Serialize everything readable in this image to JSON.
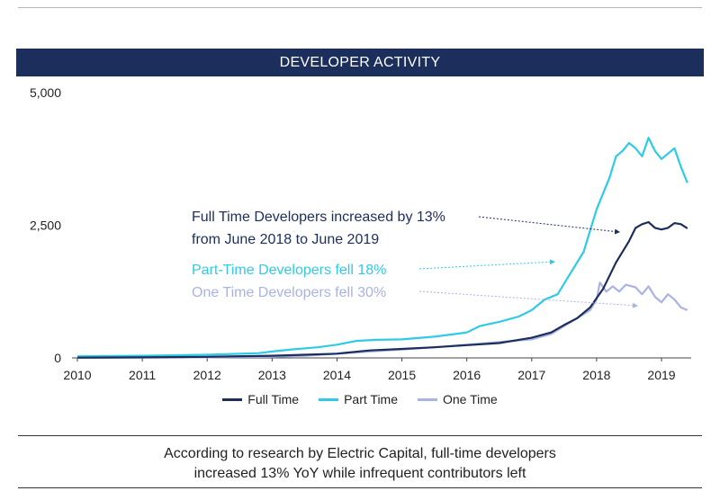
{
  "banner": {
    "title": "DEVELOPER ACTIVITY"
  },
  "colors": {
    "full_time": "#1b2e5c",
    "part_time": "#2fcbe6",
    "one_time": "#a9b3e6",
    "banner_bg": "#1b2e5c"
  },
  "chart_data": {
    "type": "line",
    "title": "DEVELOPER ACTIVITY",
    "xlim": [
      2010,
      2019.45
    ],
    "ylim": [
      0,
      5000
    ],
    "x_ticks": [
      "2010",
      "2011",
      "2012",
      "2013",
      "2014",
      "2015",
      "2016",
      "2017",
      "2018",
      "2019"
    ],
    "y_ticks": [
      "5,000",
      "2,500",
      "0"
    ],
    "y_tick_values": [
      5000,
      2500,
      0
    ],
    "grid": false,
    "legend_position": "bottom",
    "series": [
      {
        "name": "Full Time",
        "points": [
          [
            2010,
            5
          ],
          [
            2011,
            10
          ],
          [
            2012,
            20
          ],
          [
            2013,
            40
          ],
          [
            2013.5,
            60
          ],
          [
            2014,
            80
          ],
          [
            2014.5,
            140
          ],
          [
            2015,
            170
          ],
          [
            2015.5,
            200
          ],
          [
            2016,
            240
          ],
          [
            2016.5,
            280
          ],
          [
            2017,
            380
          ],
          [
            2017.3,
            480
          ],
          [
            2017.5,
            620
          ],
          [
            2017.7,
            750
          ],
          [
            2017.9,
            950
          ],
          [
            2018.1,
            1300
          ],
          [
            2018.3,
            1800
          ],
          [
            2018.5,
            2200
          ],
          [
            2018.6,
            2450
          ],
          [
            2018.7,
            2520
          ],
          [
            2018.8,
            2560
          ],
          [
            2018.9,
            2450
          ],
          [
            2019.0,
            2420
          ],
          [
            2019.1,
            2450
          ],
          [
            2019.2,
            2540
          ],
          [
            2019.3,
            2520
          ],
          [
            2019.4,
            2440
          ]
        ]
      },
      {
        "name": "Part Time",
        "points": [
          [
            2010,
            30
          ],
          [
            2011,
            40
          ],
          [
            2012,
            60
          ],
          [
            2012.8,
            90
          ],
          [
            2013,
            120
          ],
          [
            2013.3,
            160
          ],
          [
            2013.7,
            200
          ],
          [
            2014,
            250
          ],
          [
            2014.3,
            320
          ],
          [
            2014.6,
            340
          ],
          [
            2015,
            350
          ],
          [
            2015.5,
            400
          ],
          [
            2016,
            480
          ],
          [
            2016.2,
            600
          ],
          [
            2016.5,
            680
          ],
          [
            2016.8,
            780
          ],
          [
            2017,
            900
          ],
          [
            2017.2,
            1100
          ],
          [
            2017.4,
            1200
          ],
          [
            2017.6,
            1600
          ],
          [
            2017.8,
            2000
          ],
          [
            2018,
            2800
          ],
          [
            2018.1,
            3100
          ],
          [
            2018.2,
            3400
          ],
          [
            2018.3,
            3800
          ],
          [
            2018.4,
            3900
          ],
          [
            2018.5,
            4050
          ],
          [
            2018.6,
            3950
          ],
          [
            2018.7,
            3800
          ],
          [
            2018.8,
            4150
          ],
          [
            2018.9,
            3900
          ],
          [
            2019.0,
            3750
          ],
          [
            2019.1,
            3850
          ],
          [
            2019.2,
            3950
          ],
          [
            2019.3,
            3600
          ],
          [
            2019.4,
            3300
          ]
        ]
      },
      {
        "name": "One Time",
        "points": [
          [
            2010,
            0
          ],
          [
            2011,
            5
          ],
          [
            2012,
            10
          ],
          [
            2013,
            20
          ],
          [
            2013.5,
            40
          ],
          [
            2014,
            80
          ],
          [
            2014.5,
            120
          ],
          [
            2015,
            160
          ],
          [
            2015.5,
            200
          ],
          [
            2016,
            250
          ],
          [
            2016.5,
            300
          ],
          [
            2017,
            350
          ],
          [
            2017.3,
            450
          ],
          [
            2017.5,
            600
          ],
          [
            2017.7,
            750
          ],
          [
            2017.9,
            900
          ],
          [
            2018,
            1100
          ],
          [
            2018.05,
            1420
          ],
          [
            2018.15,
            1250
          ],
          [
            2018.25,
            1350
          ],
          [
            2018.35,
            1250
          ],
          [
            2018.45,
            1380
          ],
          [
            2018.6,
            1330
          ],
          [
            2018.7,
            1200
          ],
          [
            2018.8,
            1350
          ],
          [
            2018.9,
            1150
          ],
          [
            2019.0,
            1050
          ],
          [
            2019.1,
            1200
          ],
          [
            2019.2,
            1100
          ],
          [
            2019.3,
            950
          ],
          [
            2019.4,
            900
          ]
        ]
      }
    ],
    "annotations": {
      "full_line1": "Full Time Developers increased by 13%",
      "full_line2": "from June 2018 to June 2019",
      "part": "Part-Time Developers fell 18%",
      "one": "One Time Developers fell 30%"
    }
  },
  "footer": {
    "line1": "According to research by Electric Capital, full-time developers",
    "line2": "increased 13% YoY while infrequent contributors left"
  }
}
